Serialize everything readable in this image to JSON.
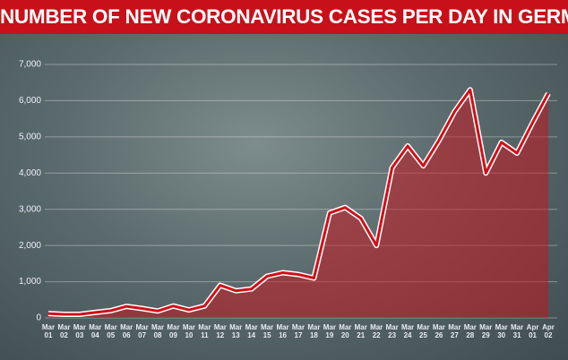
{
  "chart_data": {
    "type": "area",
    "title": "NUMBER OF NEW CORONAVIRUS CASES PER DAY IN GERMANY",
    "categories": [
      "Mar 01",
      "Mar 02",
      "Mar 03",
      "Mar 04",
      "Mar 05",
      "Mar 06",
      "Mar 07",
      "Mar 08",
      "Mar 09",
      "Mar 10",
      "Mar 11",
      "Mar 12",
      "Mar 13",
      "Mar 14",
      "Mar 15",
      "Mar 16",
      "Mar 17",
      "Mar 18",
      "Mar 19",
      "Mar 20",
      "Mar 21",
      "Mar 22",
      "Mar 23",
      "Mar 24",
      "Mar 25",
      "Mar 26",
      "Mar 27",
      "Mar 28",
      "Mar 29",
      "Mar 30",
      "Mar 31",
      "Apr 01",
      "Apr 02"
    ],
    "values": [
      120,
      100,
      100,
      150,
      200,
      320,
      260,
      190,
      330,
      220,
      330,
      900,
      750,
      800,
      1150,
      1250,
      1200,
      1100,
      2900,
      3050,
      2750,
      2000,
      4150,
      4750,
      4200,
      4900,
      5700,
      6300,
      4000,
      4850,
      4550,
      5400,
      6200
    ],
    "color": "#d0101a",
    "ylim": [
      0,
      7000
    ],
    "yticks": [
      0,
      {
        "value": 1000,
        "label": "1,000"
      },
      {
        "value": 2000,
        "label": "2,000"
      },
      {
        "value": 3000,
        "label": "3,000"
      },
      {
        "value": 4000,
        "label": "4,000"
      },
      {
        "value": 5000,
        "label": "5,000"
      },
      {
        "value": 6000,
        "label": "6,000"
      },
      {
        "value": 7000,
        "label": "7,000"
      }
    ],
    "grid": true
  }
}
